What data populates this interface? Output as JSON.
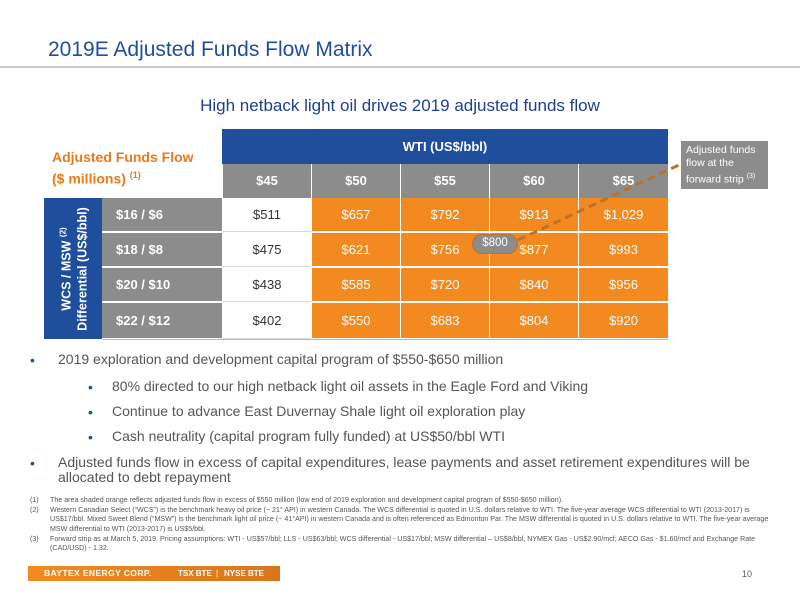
{
  "title": "2019E Adjusted Funds Flow Matrix",
  "subtitle": "High netback light oil drives 2019 adjusted funds flow",
  "matrix": {
    "label_line1": "Adjusted Funds Flow",
    "label_line2": "($ millions)",
    "label_note": "(1)",
    "column_axis_title": "WTI (US$/bbl)",
    "columns": [
      "$45",
      "$50",
      "$55",
      "$60",
      "$65"
    ],
    "row_axis_title_line1": "WCS / MSW",
    "row_axis_note": "(2)",
    "row_axis_title_line2": "Differential (US$/bbl)",
    "rows": [
      {
        "label": "$16 / $6",
        "values": [
          "$511",
          "$657",
          "$792",
          "$913",
          "$1,029"
        ]
      },
      {
        "label": "$18 / $8",
        "values": [
          "$475",
          "$621",
          "$756",
          "$877",
          "$993"
        ]
      },
      {
        "label": "$20 / $10",
        "values": [
          "$438",
          "$585",
          "$720",
          "$840",
          "$956"
        ]
      },
      {
        "label": "$22 / $12",
        "values": [
          "$402",
          "$550",
          "$683",
          "$804",
          "$920"
        ]
      }
    ],
    "shading": {
      "white_columns": [
        0
      ],
      "orange_columns": [
        1,
        2,
        3,
        4
      ]
    },
    "colors": {
      "header_blue": "#1f4e9c",
      "header_gray": "#8c8c8c",
      "shade_orange": "#f28a1f"
    }
  },
  "callout": {
    "text": "Adjusted funds flow at the forward strip",
    "note": "(3)",
    "marker_value": "$800"
  },
  "bullets": [
    {
      "level": 1,
      "text": "2019 exploration and development capital program of $550-$650 million"
    },
    {
      "level": 2,
      "text": "80% directed to our high netback light oil assets in the Eagle Ford and Viking"
    },
    {
      "level": 2,
      "text": "Continue to advance East Duvernay Shale light oil exploration play"
    },
    {
      "level": 2,
      "text": "Cash neutrality (capital program fully funded) at US$50/bbl WTI"
    },
    {
      "level": 1,
      "text": "Adjusted funds flow in excess of capital expenditures, lease payments and asset retirement expenditures will be allocated to debt repayment"
    }
  ],
  "footnotes": [
    {
      "num": "(1)",
      "text": "The area shaded orange reflects adjusted funds flow in excess of $550 million (low end of 2019 exploration and development capital program of $550-$650 million)."
    },
    {
      "num": "(2)",
      "text": "Western Canadian Select (“WCS”) is the benchmark heavy oil price (~ 21° API) in western Canada. The WCS differential is quoted in U.S. dollars relative to WTI. The five-year average WCS differential to WTI (2013-2017) is US$17/bbl. Mixed Sweet Blend (“MSW”) is the benchmark light oil price (~ 41°API) in western Canada and is often referenced as Edmonton Par. The MSW differential is quoted in U.S. dollars relative to WTI. The five-year average MSW differential to WTI (2013-2017) is US$5/bbl."
    },
    {
      "num": "(3)",
      "text": "Forward strip as at March 5, 2019. Pricing assumptions: WTI - US$57/bbl; LLS - US$63/bbl; WCS differential - US$17/bbl; MSW differential – US$8/bbl, NYMEX Gas - US$2.90/mcf; AECO Gas - $1.60/mcf and Exchange Rate (CAD/USD) - 1.32."
    }
  ],
  "footer": {
    "logo": "BAYTEX ENERGY CORP.",
    "ticker1": "TSX BTE",
    "ticker2": "NYSE BTE",
    "page_number": "10"
  }
}
